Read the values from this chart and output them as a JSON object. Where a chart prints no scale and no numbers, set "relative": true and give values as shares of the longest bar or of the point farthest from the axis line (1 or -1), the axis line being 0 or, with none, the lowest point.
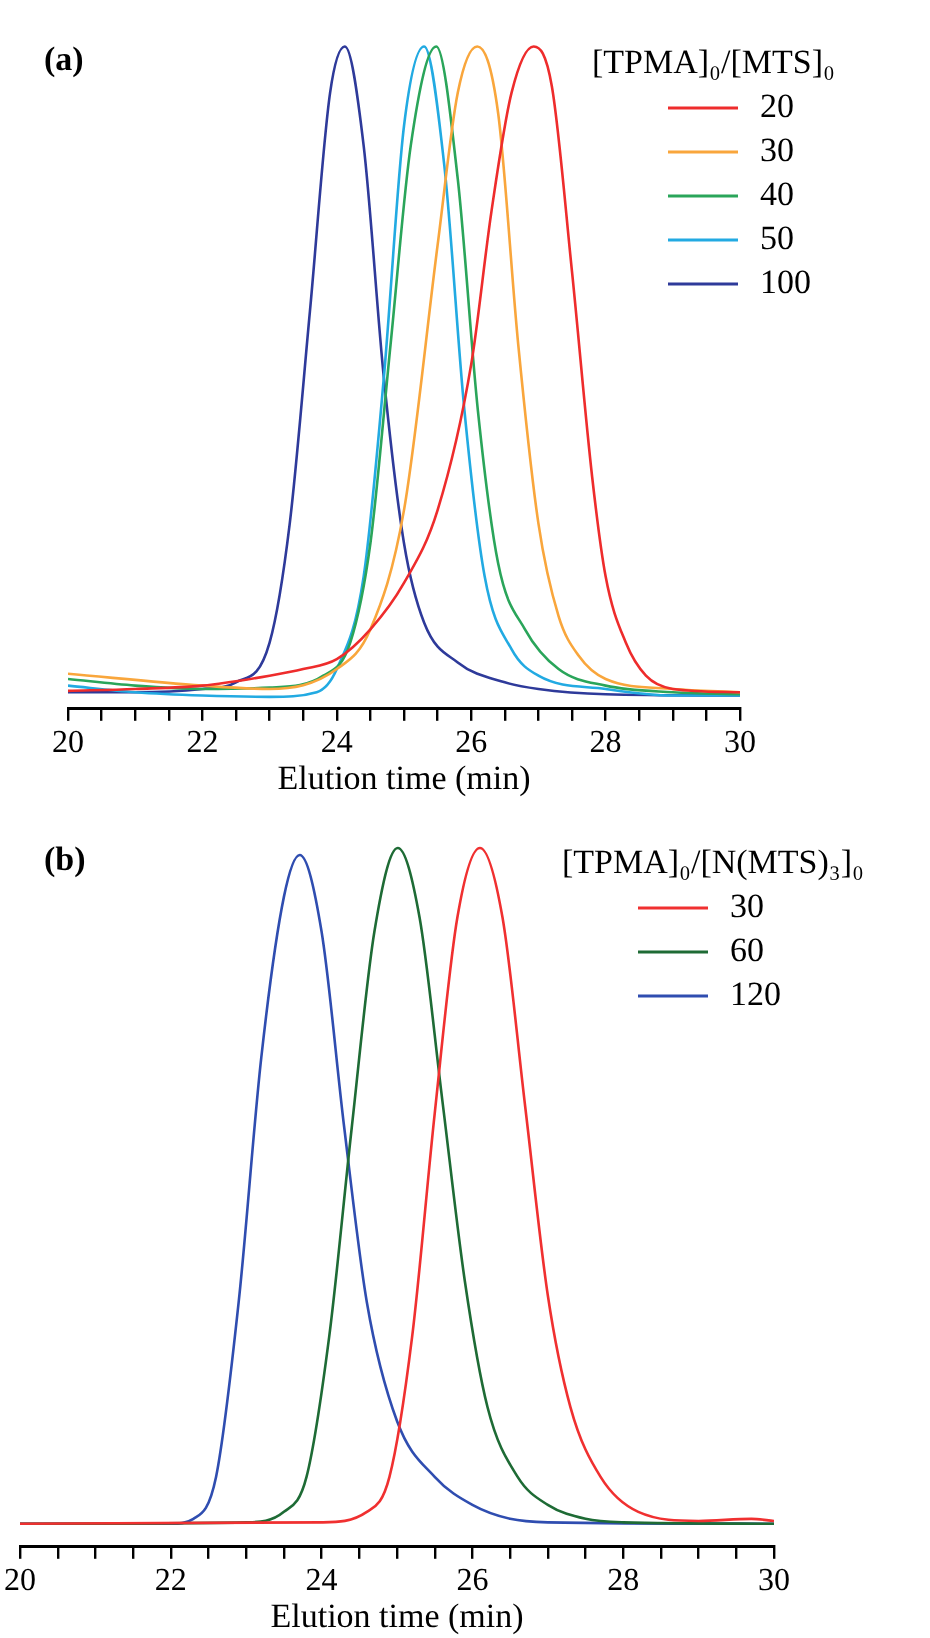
{
  "chart_data": [
    {
      "type": "line",
      "title": "(a)",
      "xlabel": "Elution time (min)",
      "legend_title": "[TPMA]₀/[MTS]₀",
      "legend": "top right",
      "relative": true,
      "grid": false,
      "marker": "none",
      "line_style": "solid",
      "xlim": [
        20,
        30
      ],
      "xticks": [
        20,
        {
          "value": 20.5,
          "label": null
        },
        {
          "value": 21,
          "label": null
        },
        {
          "value": 21.5,
          "label": null
        },
        22,
        {
          "value": 22.5,
          "label": null
        },
        {
          "value": 23,
          "label": null
        },
        {
          "value": 23.5,
          "label": null
        },
        24,
        {
          "value": 24.5,
          "label": null
        },
        {
          "value": 25,
          "label": null
        },
        {
          "value": 25.5,
          "label": null
        },
        26,
        {
          "value": 26.5,
          "label": null
        },
        {
          "value": 27,
          "label": null
        },
        {
          "value": 27.5,
          "label": null
        },
        28,
        {
          "value": 28.5,
          "label": null
        },
        {
          "value": 29,
          "label": null
        },
        {
          "value": 29.5,
          "label": null
        },
        30
      ],
      "series": [
        {
          "name": "20",
          "color": "#ee2c2c",
          "x": [
            20,
            21,
            22,
            23,
            23.5,
            24,
            24.5,
            25,
            25.5,
            26,
            26.3,
            26.6,
            26.93,
            27.2,
            27.5,
            27.8,
            28,
            28.3,
            28.6,
            29,
            30
          ],
          "values": [
            0.027,
            0.03,
            0.035,
            0.05,
            0.06,
            0.075,
            0.12,
            0.19,
            0.3,
            0.52,
            0.75,
            0.93,
            1,
            0.94,
            0.66,
            0.35,
            0.2,
            0.1,
            0.05,
            0.03,
            0.025
          ]
        },
        {
          "name": "30",
          "color": "#f9a63c",
          "x": [
            20,
            22,
            23,
            24,
            24.5,
            25,
            25.5,
            25.8,
            26.09,
            26.4,
            26.7,
            27,
            27.3,
            27.6,
            28,
            29,
            30
          ],
          "values": [
            0.053,
            0.035,
            0.03,
            0.06,
            0.12,
            0.3,
            0.7,
            0.93,
            1,
            0.9,
            0.55,
            0.28,
            0.14,
            0.08,
            0.045,
            0.03,
            0.025
          ]
        },
        {
          "name": "40",
          "color": "#2aa55a",
          "x": [
            20,
            21,
            22,
            23,
            23.8,
            24.2,
            24.5,
            24.8,
            25.1,
            25.48,
            25.8,
            26.1,
            26.4,
            26.8,
            27.3,
            28,
            29,
            30
          ],
          "values": [
            0.045,
            0.035,
            0.03,
            0.032,
            0.05,
            0.1,
            0.25,
            0.55,
            0.85,
            1,
            0.8,
            0.45,
            0.22,
            0.12,
            0.06,
            0.035,
            0.025,
            0.022
          ]
        },
        {
          "name": "50",
          "color": "#22aae2",
          "x": [
            20,
            21,
            22,
            23,
            23.7,
            24,
            24.4,
            24.7,
            25,
            25.3,
            25.6,
            25.9,
            26.2,
            26.6,
            27,
            28,
            29,
            30
          ],
          "values": [
            0.035,
            0.025,
            0.02,
            0.018,
            0.025,
            0.06,
            0.2,
            0.5,
            0.88,
            1,
            0.82,
            0.45,
            0.2,
            0.09,
            0.05,
            0.03,
            0.02,
            0.02
          ]
        },
        {
          "name": "100",
          "color": "#2e3a9a",
          "x": [
            20,
            21,
            22,
            22.5,
            23,
            23.3,
            23.6,
            23.9,
            24.12,
            24.4,
            24.7,
            25,
            25.3,
            25.8,
            26.5,
            27,
            28,
            30
          ],
          "values": [
            0.025,
            0.025,
            0.03,
            0.04,
            0.1,
            0.28,
            0.6,
            0.93,
            1,
            0.85,
            0.5,
            0.25,
            0.13,
            0.07,
            0.04,
            0.03,
            0.022,
            0.02
          ]
        }
      ]
    },
    {
      "type": "line",
      "title": "(b)",
      "xlabel": "Elution time (min)",
      "legend_title": "[TPMA]₀/[N(MTS)₃]₀",
      "legend": "top right",
      "relative": true,
      "grid": false,
      "marker": "none",
      "line_style": "solid",
      "xlim": [
        20,
        30
      ],
      "xticks": [
        20,
        {
          "value": 20.5,
          "label": null
        },
        {
          "value": 21,
          "label": null
        },
        {
          "value": 21.5,
          "label": null
        },
        22,
        {
          "value": 22.5,
          "label": null
        },
        {
          "value": 23,
          "label": null
        },
        {
          "value": 23.5,
          "label": null
        },
        24,
        {
          "value": 24.5,
          "label": null
        },
        {
          "value": 25,
          "label": null
        },
        {
          "value": 25.5,
          "label": null
        },
        26,
        {
          "value": 26.5,
          "label": null
        },
        {
          "value": 27,
          "label": null
        },
        {
          "value": 27.5,
          "label": null
        },
        28,
        {
          "value": 28.5,
          "label": null
        },
        {
          "value": 29,
          "label": null
        },
        {
          "value": 29.5,
          "label": null
        },
        30
      ],
      "series": [
        {
          "name": "30",
          "color": "#f03030",
          "x": [
            20,
            24,
            24.6,
            24.9,
            25.2,
            25.5,
            25.8,
            26.1,
            26.4,
            26.7,
            27,
            27.3,
            27.7,
            28.2,
            29,
            29.7,
            30
          ],
          "values": [
            0.033,
            0.035,
            0.05,
            0.1,
            0.3,
            0.62,
            0.9,
            1,
            0.9,
            0.63,
            0.36,
            0.2,
            0.1,
            0.05,
            0.037,
            0.04,
            0.037
          ]
        },
        {
          "name": "60",
          "color": "#1e6b35",
          "x": [
            20,
            23,
            23.5,
            23.8,
            24.1,
            24.4,
            24.7,
            25.01,
            25.3,
            25.6,
            25.9,
            26.2,
            26.6,
            27,
            27.5,
            28,
            30
          ],
          "values": [
            0.033,
            0.035,
            0.05,
            0.1,
            0.3,
            0.6,
            0.88,
            1,
            0.9,
            0.64,
            0.38,
            0.2,
            0.1,
            0.06,
            0.04,
            0.035,
            0.033
          ]
        },
        {
          "name": "120",
          "color": "#2f4db0",
          "x": [
            20,
            22,
            22.3,
            22.6,
            22.9,
            23.2,
            23.5,
            23.71,
            24,
            24.3,
            24.6,
            25,
            25.5,
            26,
            26.5,
            27,
            30
          ],
          "values": [
            0.033,
            0.033,
            0.04,
            0.1,
            0.35,
            0.7,
            0.93,
            0.99,
            0.88,
            0.6,
            0.35,
            0.18,
            0.1,
            0.06,
            0.04,
            0.035,
            0.033
          ]
        }
      ]
    }
  ]
}
